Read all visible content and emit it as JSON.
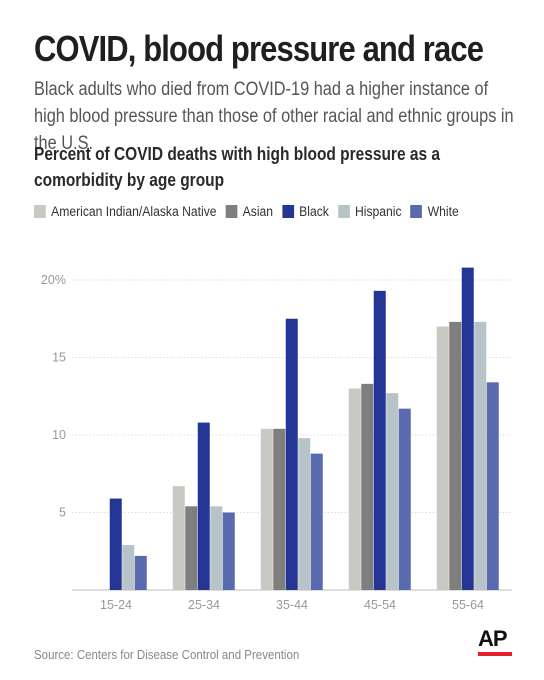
{
  "header": {
    "title": "COVID, blood pressure and race",
    "subtitle": "Black adults who died from COVID-19 had a higher instance of high blood pressure than those of other racial and ethnic groups in the U.S.",
    "chart_heading": "Percent of COVID deaths with high blood pressure as a comorbidity by age group"
  },
  "footer": {
    "source": "Source: Centers for Disease Control and Prevention",
    "logo_text": "AP"
  },
  "chart_data": {
    "type": "bar",
    "title": "Percent of COVID deaths with high blood pressure as a comorbidity by age group",
    "xlabel": "",
    "ylabel": "",
    "categories": [
      "15-24",
      "25-34",
      "35-44",
      "45-54",
      "55-64"
    ],
    "ylim": [
      0,
      21
    ],
    "yticks": [
      5,
      10,
      15,
      20
    ],
    "ytick_labels": [
      "5",
      "10",
      "15",
      "20%"
    ],
    "grid": true,
    "legend_position": "top",
    "series": [
      {
        "name": "American Indian/Alaska Native",
        "color": "#c8c9c2",
        "values": [
          null,
          6.7,
          10.4,
          13.0,
          17.0
        ]
      },
      {
        "name": "Asian",
        "color": "#7f7f7f",
        "values": [
          null,
          5.4,
          10.4,
          13.3,
          17.3
        ]
      },
      {
        "name": "Black",
        "color": "#233595",
        "values": [
          5.9,
          10.8,
          17.5,
          19.3,
          20.8
        ]
      },
      {
        "name": "Hispanic",
        "color": "#b7c4c7",
        "values": [
          2.9,
          5.4,
          9.8,
          12.7,
          17.3
        ]
      },
      {
        "name": "White",
        "color": "#5a6aae",
        "values": [
          2.2,
          5.0,
          8.8,
          11.7,
          13.4
        ]
      }
    ]
  }
}
